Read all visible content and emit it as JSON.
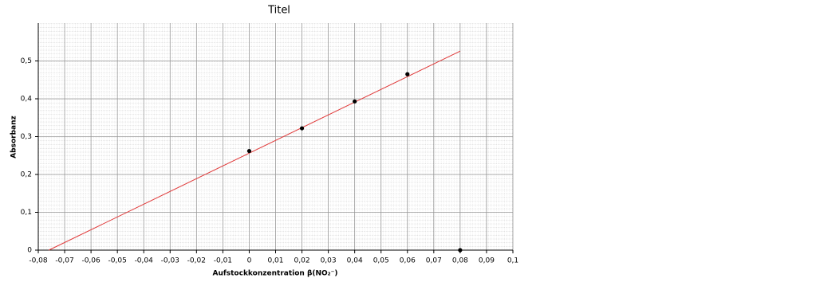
{
  "chart_data": {
    "type": "scatter",
    "title": "Titel",
    "x_label": "Aufstockkonzentration β(NO₂⁻)",
    "y_label": "Absorbanz",
    "x": [
      0,
      0.02,
      0.04,
      0.06,
      0.08
    ],
    "values": [
      0.262,
      0.322,
      0.393,
      0.465,
      0
    ],
    "color": "#000000",
    "fit_line": {
      "x": [
        -0.076,
        0.08
      ],
      "values": [
        0,
        0.526
      ],
      "color": "#e03a3a"
    },
    "xlim": [
      -0.08,
      0.1
    ],
    "ylim": [
      0,
      0.6
    ],
    "xticks": [
      {
        "value": -0.08,
        "label": "-0,08"
      },
      {
        "value": -0.07,
        "label": "-0,07"
      },
      {
        "value": -0.06,
        "label": "-0,06"
      },
      {
        "value": -0.05,
        "label": "-0,05"
      },
      {
        "value": -0.04,
        "label": "-0,04"
      },
      {
        "value": -0.03,
        "label": "-0,03"
      },
      {
        "value": -0.02,
        "label": "-0,02"
      },
      {
        "value": -0.01,
        "label": "-0,01"
      },
      0,
      {
        "value": 0.01,
        "label": "0,01"
      },
      {
        "value": 0.02,
        "label": "0,02"
      },
      {
        "value": 0.03,
        "label": "0,03"
      },
      {
        "value": 0.04,
        "label": "0,04"
      },
      {
        "value": 0.05,
        "label": "0,05"
      },
      {
        "value": 0.06,
        "label": "0,06"
      },
      {
        "value": 0.07,
        "label": "0,07"
      },
      {
        "value": 0.08,
        "label": "0,08"
      },
      {
        "value": 0.09,
        "label": "0,09"
      },
      {
        "value": 0.1,
        "label": "0,1"
      }
    ],
    "yticks": [
      0,
      {
        "value": 0.1,
        "label": "0,1"
      },
      {
        "value": 0.2,
        "label": "0,2"
      },
      {
        "value": 0.3,
        "label": "0,3"
      },
      {
        "value": 0.4,
        "label": "0,4"
      },
      {
        "value": 0.5,
        "label": "0,5"
      }
    ],
    "grid": true
  }
}
